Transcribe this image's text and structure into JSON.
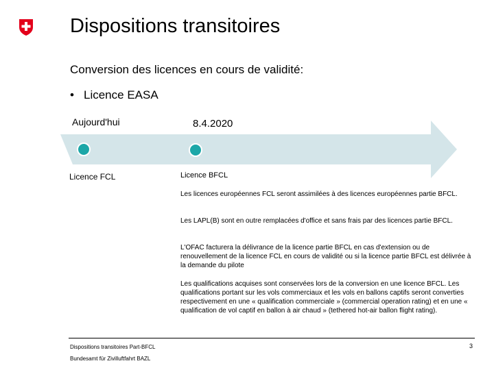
{
  "slide": {
    "title": "Dispositions transitoires",
    "subtitle": "Conversion des licences en cours de validité:",
    "bullet": {
      "marker": "•",
      "text": "Licence EASA"
    }
  },
  "timeline": {
    "start_label": "Aujourd'hui",
    "end_label": "8.4.2020",
    "start_licence": "Licence FCL",
    "end_licence": "Licence BFCL",
    "arrow_color": "#d4e5e9",
    "marker_color": "#1ca7a8"
  },
  "paragraphs": [
    "Les licences européennes FCL seront assimilées à des licences européennes partie BFCL.",
    "Les LAPL(B) sont en outre remplacées d'office et sans frais par des licences partie BFCL.",
    "L'OFAC facturera la délivrance de la licence partie BFCL en cas d'extension ou de renouvellement de la licence FCL en cours de validité ou si la licence partie BFCL est délivrée à la demande du pilote",
    "Les qualifications acquises sont conservées lors de la conversion en une licence BFCL. Les qualifications portant sur les vols commerciaux et les vols en ballons captifs seront converties respectivement en une « qualification commerciale » (commercial operation rating) et en une « qualification de vol captif en ballon à air chaud » (tethered hot-air ballon flight rating)."
  ],
  "footer": {
    "left": "Dispositions transitoires Part-BFCL",
    "agency": "Bundesamt für Zivilluftfahrt BAZL",
    "page": "3"
  },
  "logo": {
    "icon": "swiss-shield-icon",
    "color": "#e3001b"
  }
}
